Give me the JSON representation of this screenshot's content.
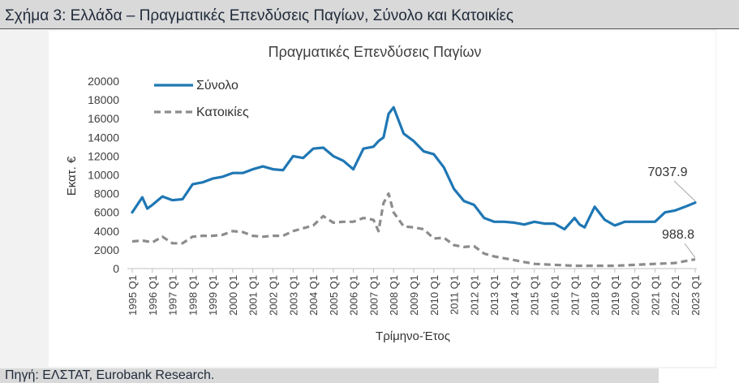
{
  "figure": {
    "title": "Σχήμα 3: Ελλάδα – Πραγματικές Επενδύσεις Παγίων, Σύνολο και Κατοικίες",
    "source": "Πηγή: ΕΛΣΤΑΤ, Eurobank Research."
  },
  "chart_data": {
    "type": "line",
    "title": "Πραγματικές Επενδύσεις Παγίων",
    "xlabel": "Τρίμηνο-Έτος",
    "ylabel": "Εκατ. €",
    "ylim": [
      0,
      20000
    ],
    "yticks": [
      0,
      2000,
      4000,
      6000,
      8000,
      10000,
      12000,
      14000,
      16000,
      18000,
      20000
    ],
    "xticks": [
      "1995 Q1",
      "1996 Q1",
      "1997 Q1",
      "1998 Q1",
      "1999 Q1",
      "2000 Q1",
      "2001 Q1",
      "2002 Q1",
      "2003 Q1",
      "2004 Q1",
      "2005 Q1",
      "2006 Q1",
      "2007 Q1",
      "2008 Q1",
      "2009 Q1",
      "2010 Q1",
      "2011 Q1",
      "2012 Q1",
      "2013 Q1",
      "2014 Q1",
      "2015 Q1",
      "2016 Q1",
      "2017 Q1",
      "2018 Q1",
      "2019 Q1",
      "2020 Q1",
      "2021 Q1",
      "2022 Q1",
      "2023 Q1"
    ],
    "grid": false,
    "legend": "top-left",
    "series": [
      {
        "name": "Σύνολο",
        "color": "#1f77b4",
        "style": "solid",
        "end_label": "7037.9",
        "x": [
          1995.0,
          1995.5,
          1995.75,
          1996.0,
          1996.5,
          1997.0,
          1997.5,
          1998.0,
          1998.5,
          1999.0,
          1999.5,
          2000.0,
          2000.5,
          2001.0,
          2001.5,
          2002.0,
          2002.5,
          2003.0,
          2003.5,
          2004.0,
          2004.5,
          2005.0,
          2005.5,
          2006.0,
          2006.5,
          2007.0,
          2007.25,
          2007.5,
          2007.75,
          2008.0,
          2008.5,
          2009.0,
          2009.5,
          2010.0,
          2010.5,
          2011.0,
          2011.5,
          2012.0,
          2012.5,
          2013.0,
          2013.5,
          2014.0,
          2014.5,
          2015.0,
          2015.5,
          2016.0,
          2016.5,
          2017.0,
          2017.25,
          2017.5,
          2018.0,
          2018.25,
          2018.5,
          2019.0,
          2019.5,
          2020.0,
          2020.5,
          2021.0,
          2021.5,
          2022.0,
          2022.5,
          2023.0
        ],
        "values": [
          6000,
          7600,
          6400,
          6800,
          7700,
          7300,
          7400,
          9000,
          9200,
          9600,
          9800,
          10200,
          10200,
          10600,
          10900,
          10600,
          10500,
          12000,
          11800,
          12800,
          12900,
          12000,
          11500,
          10600,
          12800,
          13000,
          13600,
          14000,
          16500,
          17200,
          14400,
          13600,
          12500,
          12200,
          10800,
          8500,
          7200,
          6800,
          5400,
          5000,
          5000,
          4900,
          4700,
          5000,
          4800,
          4800,
          4200,
          5400,
          4700,
          4400,
          6600,
          5900,
          5200,
          4600,
          5000,
          5000,
          5000,
          5000,
          6000,
          6200,
          6600,
          7037.9
        ]
      },
      {
        "name": "Κατοικίες",
        "color": "#8c8c8c",
        "style": "dashed",
        "end_label": "988.8",
        "x": [
          1995.0,
          1995.5,
          1996.0,
          1996.5,
          1997.0,
          1997.5,
          1998.0,
          1998.5,
          1999.0,
          1999.5,
          2000.0,
          2000.5,
          2001.0,
          2001.5,
          2002.0,
          2002.5,
          2003.0,
          2003.5,
          2004.0,
          2004.5,
          2005.0,
          2005.5,
          2006.0,
          2006.5,
          2007.0,
          2007.25,
          2007.5,
          2007.75,
          2008.0,
          2008.5,
          2009.0,
          2009.5,
          2010.0,
          2010.5,
          2011.0,
          2011.5,
          2012.0,
          2012.5,
          2013.0,
          2014.0,
          2015.0,
          2016.0,
          2017.0,
          2018.0,
          2019.0,
          2020.0,
          2021.0,
          2022.0,
          2022.5,
          2023.0
        ],
        "values": [
          2900,
          3000,
          2800,
          3400,
          2700,
          2700,
          3400,
          3500,
          3500,
          3600,
          4000,
          3900,
          3500,
          3400,
          3500,
          3500,
          4000,
          4300,
          4600,
          5600,
          4900,
          5000,
          5000,
          5400,
          5200,
          4000,
          7000,
          8000,
          6000,
          4500,
          4400,
          4200,
          3200,
          3300,
          2500,
          2300,
          2400,
          1600,
          1300,
          900,
          500,
          400,
          300,
          300,
          300,
          400,
          500,
          600,
          800,
          988.8
        ]
      }
    ]
  }
}
